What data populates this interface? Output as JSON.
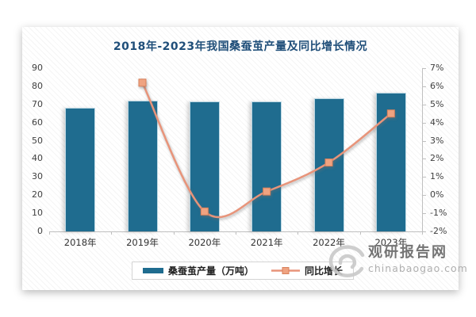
{
  "title": "2018年-2023年我国桑蚕茧产量及同比增长情况",
  "colors": {
    "bar": "#1F6C8F",
    "line": "#E8947A",
    "marker_fill": "#EFA381",
    "marker_stroke": "#D8815C",
    "title_text": "#1F4E79",
    "axis_text": "#404040",
    "axis_line": "#BFBFBF"
  },
  "chart_data": {
    "type": "bar+line-combo",
    "title": "2018年-2023年我国桑蚕茧产量及同比增长情况",
    "categories": [
      "2018年",
      "2019年",
      "2020年",
      "2021年",
      "2022年",
      "2023年"
    ],
    "series": [
      {
        "name": "桑蚕茧产量（万吨）",
        "type": "bar",
        "axis": "left",
        "values": [
          68,
          72.3,
          71.6,
          71.8,
          73.2,
          76.5
        ]
      },
      {
        "name": "同比增长",
        "type": "line",
        "axis": "right",
        "unit": "%",
        "values": [
          null,
          6.2,
          -0.9,
          0.2,
          1.8,
          4.5
        ]
      }
    ],
    "left_axis": {
      "min": 0,
      "max": 90,
      "step": 10,
      "ticks": [
        "90",
        "80",
        "70",
        "60",
        "50",
        "40",
        "30",
        "20",
        "10",
        "0"
      ]
    },
    "right_axis": {
      "min": -2,
      "max": 7,
      "step": 1,
      "ticks": [
        "7%",
        "6%",
        "5%",
        "4%",
        "3%",
        "2%",
        "1%",
        "0%",
        "-1%",
        "-2%"
      ]
    },
    "legend_position": "bottom",
    "grid": false,
    "plot_background": "diagonal-hatch"
  },
  "legend": {
    "items": [
      {
        "label": "桑蚕茧产量（万吨）",
        "swatch": "bar"
      },
      {
        "label": "同比增长",
        "swatch": "line"
      }
    ]
  },
  "watermark": {
    "name": "观研报告网",
    "domain": "chinabaogao.com"
  }
}
